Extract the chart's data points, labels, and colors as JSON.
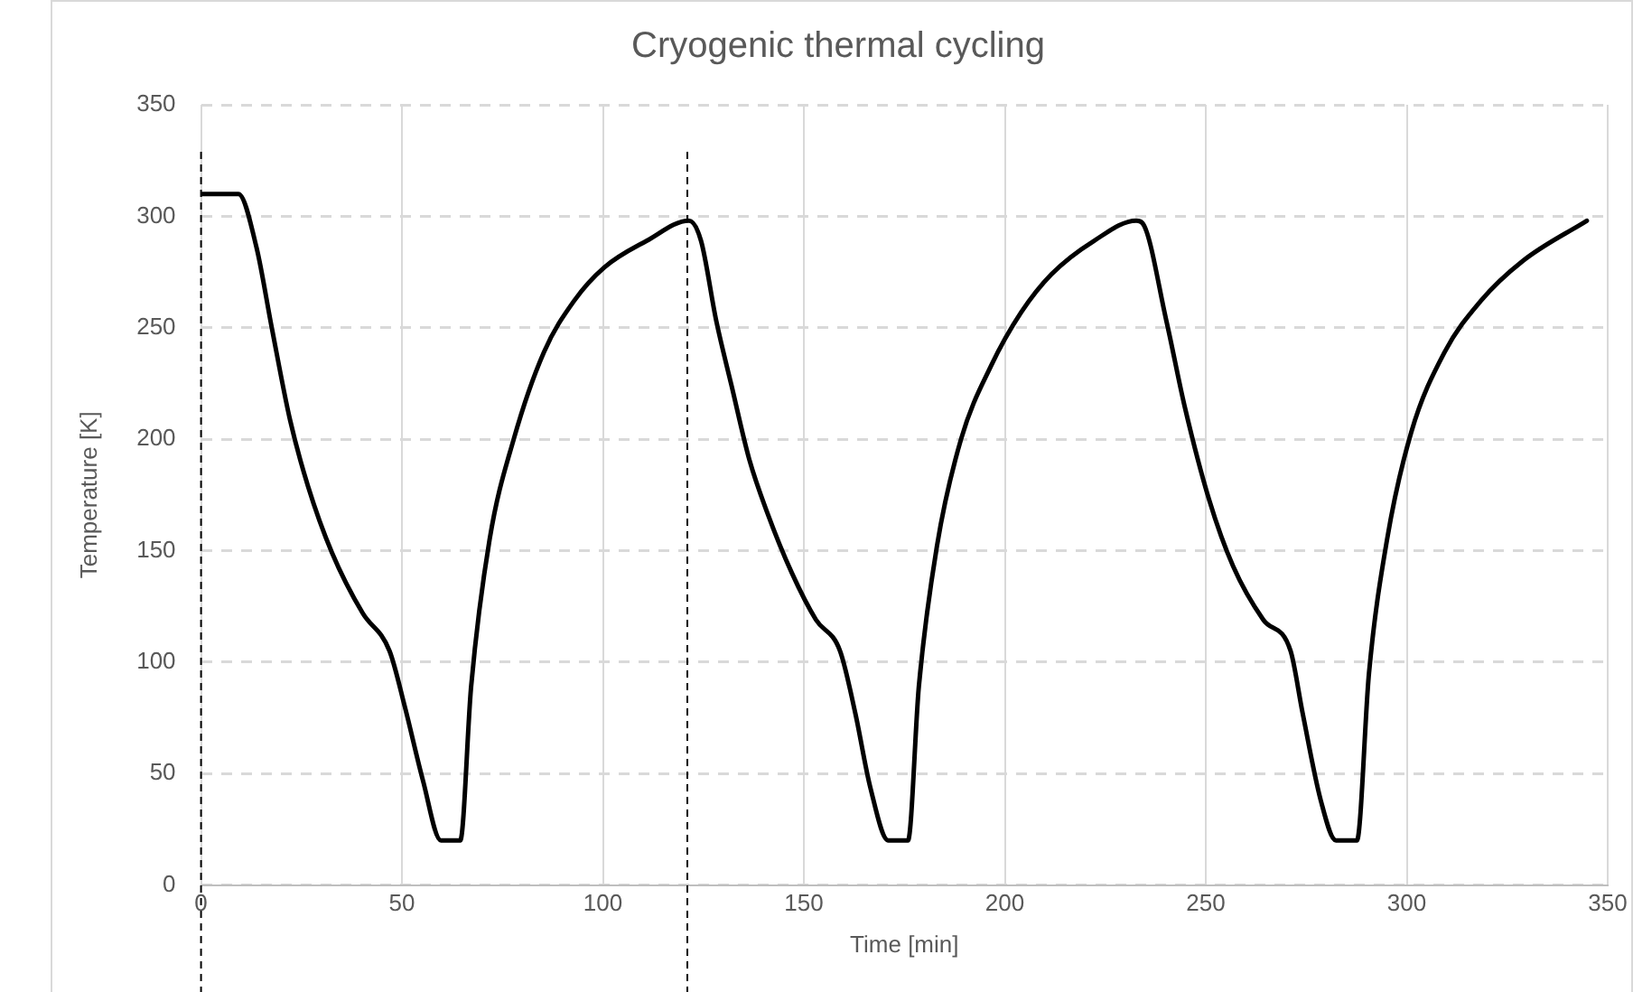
{
  "chart_data": {
    "type": "line",
    "title": "Cryogenic thermal cycling",
    "xlabel": "Time [min]",
    "ylabel": "Temperature [K]",
    "x": [
      0,
      9.3,
      13.8,
      17.6,
      22.1,
      26.6,
      32.6,
      40.2,
      46.9,
      50.7,
      55.2,
      59.7,
      64.5,
      67.2,
      71.8,
      77.8,
      85.3,
      92.8,
      100.3,
      110.9,
      121.4,
      124.4,
      128.2,
      132,
      136.4,
      140.9,
      147,
      153,
      159,
      162.8,
      166.5,
      171,
      175.9,
      178.6,
      183.1,
      189.1,
      196.6,
      204.1,
      211.6,
      222.2,
      232.7,
      234.2,
      240.2,
      244.7,
      250.8,
      256.8,
      264.3,
      271.1,
      274.1,
      278.6,
      282.4,
      287.6,
      290.6,
      295.1,
      301.1,
      309.4,
      318.4,
      328.9,
      344.8
    ],
    "values": [
      310,
      310,
      286,
      250,
      209,
      179,
      149,
      122,
      105,
      80,
      47,
      20,
      20,
      89,
      155,
      200,
      239,
      262,
      277,
      289,
      298,
      289,
      253,
      224,
      191,
      167,
      140,
      119,
      105,
      77,
      44,
      20,
      20,
      89,
      152,
      200,
      233,
      257,
      274,
      289,
      298,
      297,
      253,
      215,
      173,
      143,
      119,
      105,
      77,
      38,
      20,
      20,
      95,
      155,
      203,
      239,
      262,
      280,
      298
    ],
    "color": "#000000",
    "line_style": "solid",
    "marker": "none",
    "xlim": [
      0,
      350
    ],
    "xticks": [
      0,
      50,
      100,
      150,
      200,
      250,
      300,
      350
    ],
    "ylim": [
      0,
      350
    ],
    "yticks": [
      0,
      50,
      100,
      150,
      200,
      250,
      300,
      350
    ],
    "grid": true,
    "legend": false,
    "ref_lines": [
      {
        "axis": "x",
        "value": 0,
        "color": "#000000",
        "line_style": "dashed"
      },
      {
        "axis": "x",
        "value": 121,
        "color": "#000000",
        "line_style": "dashed"
      }
    ]
  }
}
